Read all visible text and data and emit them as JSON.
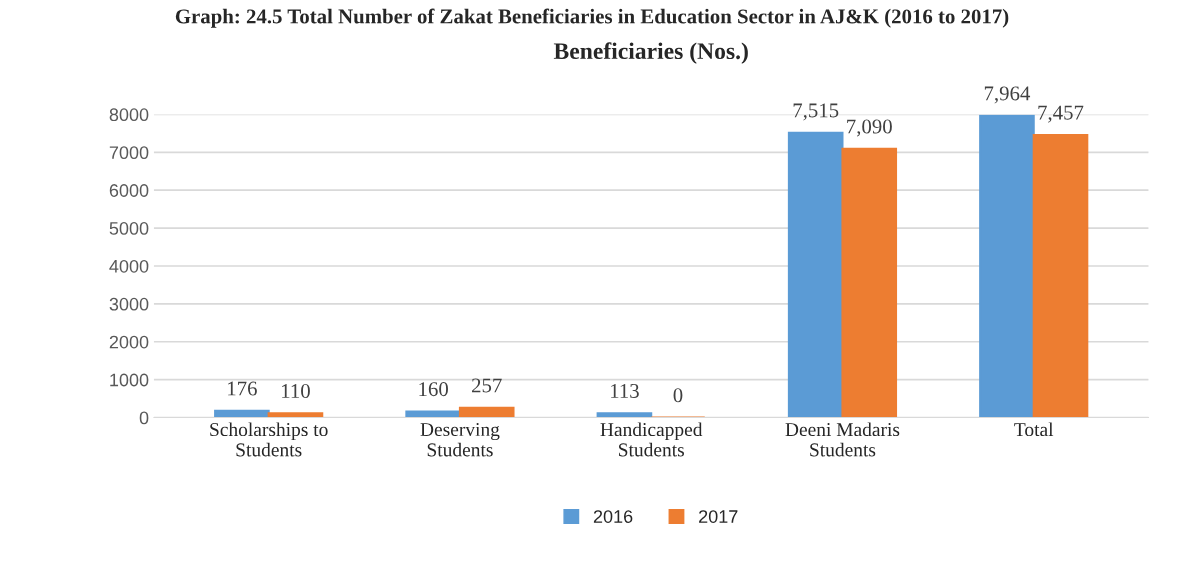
{
  "chart_data": {
    "type": "bar",
    "title": "Graph: 24.5 Total Number of Zakat Beneficiaries in Education Sector in AJ&K (2016 to 2017)",
    "subtitle": "Beneficiaries (Nos.)",
    "categories": [
      "Scholarships to\nStudents",
      "Deserving\nStudents",
      "Handicapped\nStudents",
      "Deeni Madaris\nStudents",
      "Total"
    ],
    "series": [
      {
        "name": "2016",
        "color": "#5b9bd5",
        "values": [
          176,
          160,
          113,
          7515,
          7964
        ],
        "value_labels": [
          "176",
          "160",
          "113",
          "7,515",
          "7,964"
        ]
      },
      {
        "name": "2017",
        "color": "#ed7d31",
        "values": [
          110,
          257,
          0,
          7090,
          7457
        ],
        "value_labels": [
          "110",
          "257",
          "0",
          "7,090",
          "7,457"
        ]
      }
    ],
    "ylim": [
      0,
      8000
    ],
    "yticks": [
      0,
      1000,
      2000,
      3000,
      4000,
      5000,
      6000,
      7000,
      8000
    ],
    "grid": "y",
    "legend": "bottom"
  }
}
